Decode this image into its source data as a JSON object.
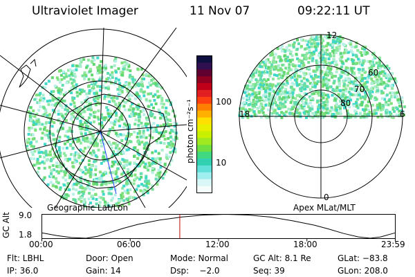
{
  "header": {
    "title": "Ultraviolet Imager",
    "date": "11 Nov 07",
    "time": "09:22:11 UT"
  },
  "left_map": {
    "caption": "Geographic Lat/Lon"
  },
  "right_map": {
    "caption": "Apex MLat/MLT",
    "mlt_labels": [
      "12",
      "18",
      "6",
      "0"
    ],
    "lat_labels": [
      "60",
      "70",
      "80"
    ]
  },
  "colorbar": {
    "unit": "photon cm⁻²s⁻¹",
    "ticks": [
      "100",
      "10"
    ],
    "colors": [
      "#101040",
      "#301050",
      "#600030",
      "#900020",
      "#c00018",
      "#e02020",
      "#ff4010",
      "#ff8000",
      "#ffb000",
      "#ffe000",
      "#e8f000",
      "#c8f000",
      "#a0e820",
      "#70e040",
      "#40d880",
      "#30d0b0",
      "#60e0d8",
      "#a0eeee",
      "#d8f6f6",
      "#f4fcfc"
    ]
  },
  "chart_data": {
    "type": "line",
    "title": "",
    "ylabel": "GC Alt",
    "yticks": [
      "9.0",
      "1.8"
    ],
    "ylim": [
      1.8,
      9.0
    ],
    "xticks": [
      "00:00",
      "06:00",
      "12:00",
      "18:00",
      "23:59"
    ],
    "xlim_hours": [
      0,
      24
    ],
    "series": [
      {
        "x": [
          0,
          1,
          2,
          3,
          3.8,
          4.5,
          5.5,
          6.5,
          8,
          9.5,
          11,
          12.5,
          14,
          15.5,
          17,
          18.5,
          19.5,
          20.5,
          21.5,
          22.3,
          23,
          24
        ],
        "y": [
          3.5,
          2.7,
          2.1,
          1.9,
          2.5,
          3.4,
          4.8,
          6.0,
          7.3,
          8.2,
          8.8,
          9.0,
          8.8,
          8.2,
          7.1,
          5.8,
          4.6,
          3.3,
          2.3,
          1.9,
          2.3,
          3.5
        ]
      }
    ],
    "marker_time": "09:22"
  },
  "footer": {
    "rows": [
      [
        "Flt: LBHL",
        "Door: Open",
        "Mode: Normal",
        "GC Alt: 8.1 Re",
        "GLat: −83.8"
      ],
      [
        "IP: 36.0",
        "Gain: 14",
        "Dsp:    −2.0",
        "Seq: 39",
        "GLon: 208.0"
      ]
    ]
  }
}
